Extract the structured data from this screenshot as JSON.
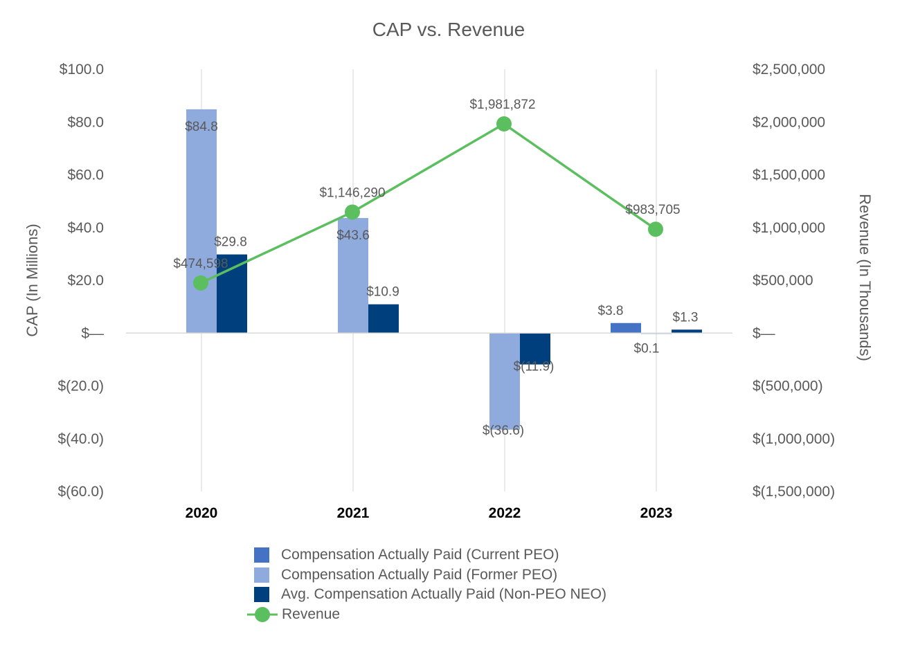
{
  "chart_data": {
    "type": "bar+line",
    "title": "CAP vs. Revenue",
    "categories": [
      "2020",
      "2021",
      "2022",
      "2023"
    ],
    "y_left": {
      "label": "CAP (In Millions)",
      "range": [
        -60,
        100
      ],
      "ticks": [
        100,
        80,
        60,
        40,
        20,
        0,
        -20,
        -40,
        -60
      ],
      "tick_labels": [
        "$100.0",
        "$80.0",
        "$60.0",
        "$40.0",
        "$20.0",
        "$—",
        "$(20.0)",
        "$(40.0)",
        "$(60.0)"
      ]
    },
    "y_right": {
      "label": "Revenue (In Thousands)",
      "range": [
        -1500000,
        2500000
      ],
      "ticks": [
        2500000,
        2000000,
        1500000,
        1000000,
        500000,
        0,
        -500000,
        -1000000,
        -1500000
      ],
      "tick_labels": [
        "$2,500,000",
        "$2,000,000",
        "$1,500,000",
        "$1,000,000",
        "$500,000",
        "$—",
        "$(500,000)",
        "$(1,000,000)",
        "$(1,500,000)"
      ]
    },
    "bar_series": [
      {
        "name": "Compensation Actually Paid (Current PEO)",
        "color": "#4472C4",
        "values": [
          null,
          null,
          null,
          3.8
        ],
        "labels": [
          "",
          "",
          "",
          "$3.8"
        ]
      },
      {
        "name": "Compensation Actually Paid (Former PEO)",
        "color": "#8FAADC",
        "values": [
          84.8,
          43.6,
          -36.6,
          0.1
        ],
        "labels": [
          "$84.8",
          "$43.6",
          "$(36.6)",
          "$0.1"
        ]
      },
      {
        "name": "Avg. Compensation Actually Paid (Non-PEO NEO)",
        "color": "#003F7D",
        "values": [
          29.8,
          10.9,
          -11.9,
          1.3
        ],
        "labels": [
          "$29.8",
          "$10.9",
          "$(11.9)",
          "$1.3"
        ]
      }
    ],
    "line_series": {
      "name": "Revenue",
      "color": "#5CBF5F",
      "values": [
        474598,
        1146290,
        1981872,
        983705
      ],
      "labels": [
        "$474,598",
        "$1,146,290",
        "$1,981,872",
        "$983,705"
      ]
    },
    "grid": "vertical",
    "legend_position": "bottom"
  }
}
